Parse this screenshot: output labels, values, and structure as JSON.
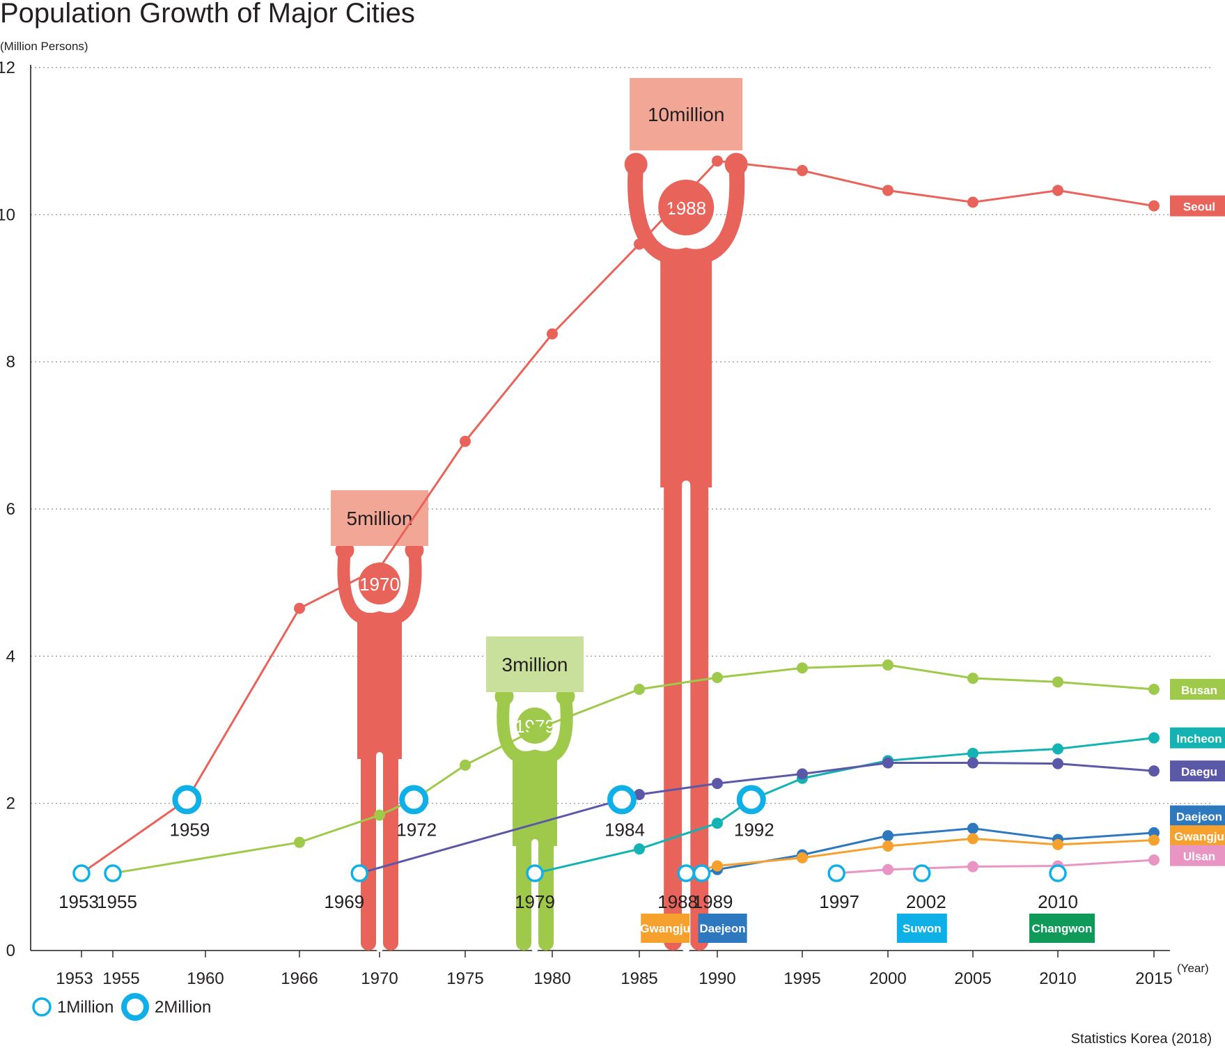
{
  "chart_data": {
    "type": "line",
    "title": "Population Growth of Major Cities",
    "ylabel": "(Million Persons)",
    "xlabel": "(Year)",
    "ylim": [
      0,
      12
    ],
    "yticks": [
      0,
      2,
      4,
      6,
      8,
      10,
      12
    ],
    "x_ticks": [
      1953,
      1955,
      1960,
      1966,
      1970,
      1975,
      1980,
      1985,
      1990,
      1995,
      2000,
      2005,
      2010,
      2015
    ],
    "grid": true,
    "source": "Statistics Korea (2018)",
    "series": [
      {
        "name": "Seoul",
        "color": "#e8635a",
        "x": [
          1953,
          1959,
          1966,
          1970,
          1975,
          1980,
          1985,
          1990,
          1995,
          2000,
          2005,
          2010,
          2015
        ],
        "y": [
          1.05,
          2.05,
          4.65,
          5.2,
          6.92,
          8.38,
          9.6,
          10.73,
          10.6,
          10.33,
          10.17,
          10.33,
          10.12
        ]
      },
      {
        "name": "Busan",
        "color": "#9ec94a",
        "x": [
          1955,
          1966,
          1970,
          1972,
          1975,
          1979,
          1985,
          1990,
          1995,
          2000,
          2005,
          2010,
          2015
        ],
        "y": [
          1.05,
          1.47,
          1.84,
          2.05,
          2.52,
          3.0,
          3.55,
          3.71,
          3.84,
          3.88,
          3.7,
          3.65,
          3.55
        ]
      },
      {
        "name": "Incheon",
        "color": "#13b2b3",
        "x": [
          1979,
          1985,
          1990,
          1992,
          1995,
          2000,
          2005,
          2010,
          2015
        ],
        "y": [
          1.05,
          1.38,
          1.73,
          2.05,
          2.34,
          2.58,
          2.68,
          2.74,
          2.89
        ]
      },
      {
        "name": "Daegu",
        "color": "#5b58a8",
        "x": [
          1969,
          1984,
          1985,
          1990,
          1995,
          2000,
          2005,
          2010,
          2015
        ],
        "y": [
          1.05,
          2.05,
          2.12,
          2.27,
          2.4,
          2.55,
          2.55,
          2.54,
          2.44
        ]
      },
      {
        "name": "Daejeon",
        "color": "#2d78be",
        "x": [
          1989,
          1990,
          1995,
          2000,
          2005,
          2010,
          2015
        ],
        "y": [
          1.05,
          1.1,
          1.3,
          1.56,
          1.66,
          1.51,
          1.6
        ]
      },
      {
        "name": "Gwangju",
        "color": "#f6a12e",
        "x": [
          1988,
          1990,
          1995,
          2000,
          2005,
          2010,
          2015
        ],
        "y": [
          1.05,
          1.15,
          1.26,
          1.42,
          1.52,
          1.44,
          1.5
        ]
      },
      {
        "name": "Ulsan",
        "color": "#e895c4",
        "x": [
          1997,
          2000,
          2005,
          2010,
          2015
        ],
        "y": [
          1.05,
          1.1,
          1.14,
          1.15,
          1.23
        ]
      }
    ],
    "milestones_1million": [
      {
        "year": 1953,
        "label": "1953"
      },
      {
        "year": 1955,
        "label": "1955"
      },
      {
        "year": 1969,
        "label": "1969"
      },
      {
        "year": 1979,
        "label": "1979"
      },
      {
        "year": 1988,
        "label": "1988"
      },
      {
        "year": 1989,
        "label": "1989"
      },
      {
        "year": 1997,
        "label": "1997"
      },
      {
        "year": 2002,
        "label": "2002"
      },
      {
        "year": 2010,
        "label": "2010"
      }
    ],
    "milestones_2million": [
      {
        "year": 1959,
        "label": "1959"
      },
      {
        "year": 1972,
        "label": "1972"
      },
      {
        "year": 1984,
        "label": "1984"
      },
      {
        "year": 1992,
        "label": "1992"
      }
    ],
    "city_tags": [
      {
        "name": "Gwangju",
        "color": "#f6a12e",
        "year": 1988
      },
      {
        "name": "Daejeon",
        "color": "#2d78be",
        "year": 1989
      },
      {
        "name": "Suwon",
        "color": "#0fb0e8",
        "year": 2002
      },
      {
        "name": "Changwon",
        "color": "#0f9a5a",
        "year": 2010
      }
    ],
    "figures": [
      {
        "year": 1970,
        "caption": "5million",
        "label": "1970",
        "color": "#e8635a",
        "caption_bg": "#f2a796"
      },
      {
        "year": 1979,
        "caption": "3million",
        "label": "1979",
        "color": "#9ec94a",
        "caption_bg": "#c8e09b"
      },
      {
        "year": 1988,
        "caption": "10million",
        "label": "1988",
        "color": "#e8635a",
        "caption_bg": "#f2a796"
      }
    ],
    "legend": [
      {
        "label": "1Million"
      },
      {
        "label": "2Million"
      }
    ]
  }
}
